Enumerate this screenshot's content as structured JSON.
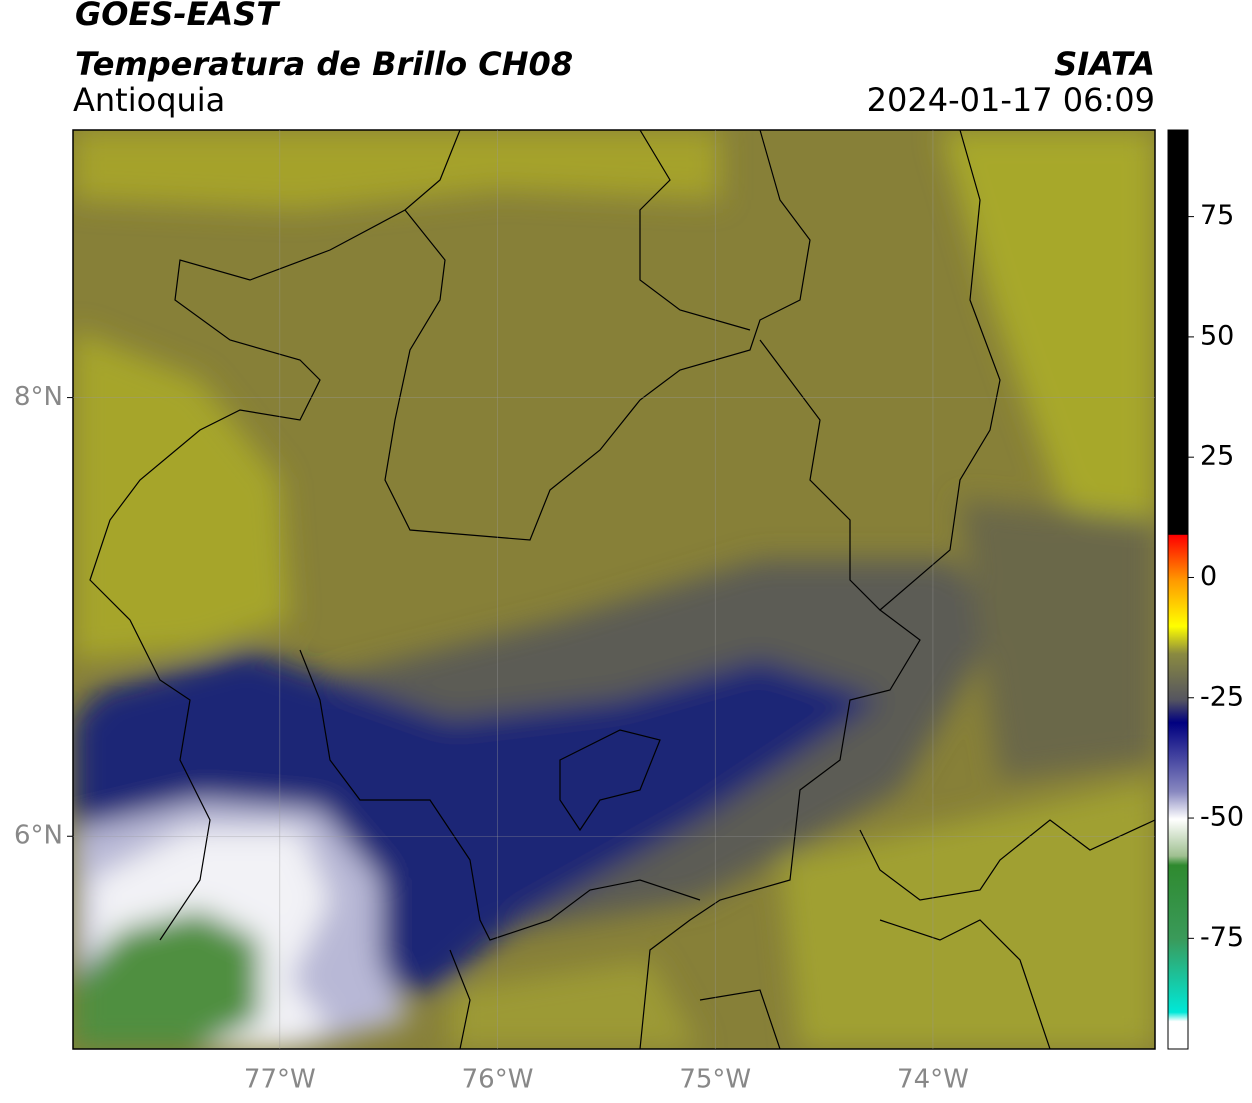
{
  "header": {
    "title": "GOES-EAST",
    "subtitle": "Temperatura de Brillo CH08",
    "region": "Antioquia",
    "source": "SIATA",
    "datetime": "2024-01-17 06:09"
  },
  "map": {
    "xlim": [
      -77.95,
      -72.98
    ],
    "ylim": [
      5.03,
      9.22
    ],
    "xticks": [
      {
        "value": -77,
        "label": "77°W"
      },
      {
        "value": -76,
        "label": "76°W"
      },
      {
        "value": -75,
        "label": "75°W"
      },
      {
        "value": -74,
        "label": "74°W"
      }
    ],
    "yticks": [
      {
        "value": 8,
        "label": "8°N"
      },
      {
        "value": 6,
        "label": "6°N"
      }
    ],
    "grid": true
  },
  "colorbar": {
    "lim": [
      -98,
      93
    ],
    "ticks": [
      75,
      50,
      25,
      0,
      -25,
      -50,
      -75
    ]
  }
}
